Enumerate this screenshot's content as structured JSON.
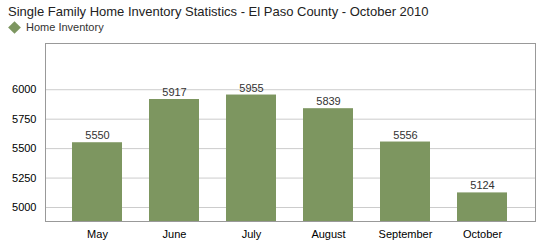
{
  "chart_data": {
    "type": "bar",
    "title": "Single Family Home Inventory Statistics - El Paso County - October 2010",
    "categories": [
      "May",
      "June",
      "July",
      "August",
      "September",
      "October"
    ],
    "series": [
      {
        "name": "Home Inventory",
        "color": "#7d9660",
        "values": [
          5550,
          5917,
          5955,
          5839,
          5556,
          5124
        ]
      }
    ],
    "ylim": [
      4881.25,
      6392.5
    ],
    "yticks": [
      5000,
      5250,
      5500,
      5750,
      6000
    ],
    "grid": true,
    "legend": "top-left",
    "data_labels": true
  }
}
